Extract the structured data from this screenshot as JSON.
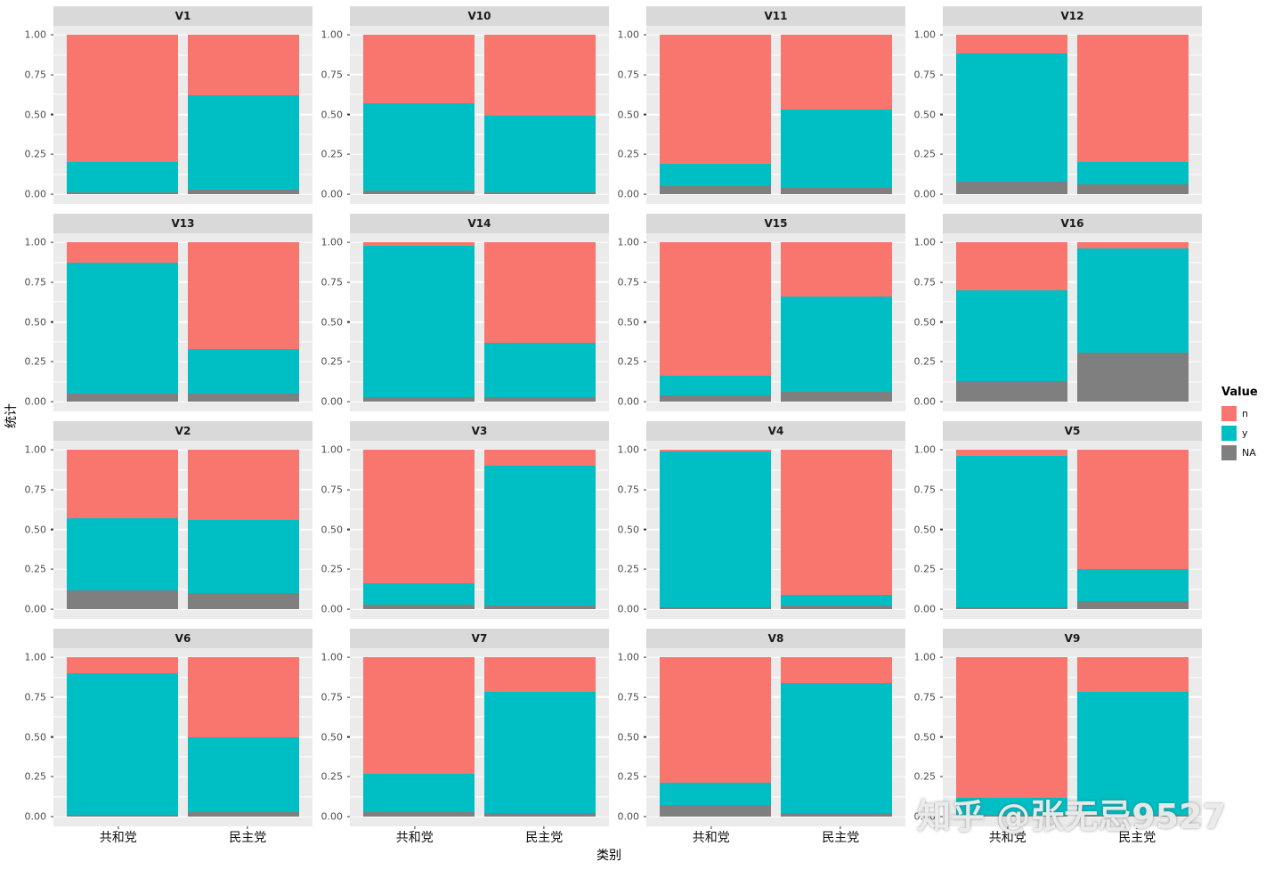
{
  "watermark": {
    "text": "知乎 @张无忌9527"
  },
  "chart_data": {
    "type": "bar",
    "stacked": true,
    "xlabel": "类别",
    "ylabel": "统计",
    "categories": [
      "共和党",
      "民主党"
    ],
    "ytick_labels": [
      "0.00",
      "0.25",
      "0.50",
      "0.75",
      "1.00"
    ],
    "ylim": [
      0,
      1
    ],
    "stack_order_bottom_to_top": [
      "NA",
      "y",
      "n"
    ],
    "colors": {
      "n": "#F8766D",
      "y": "#00BFC4",
      "NA": "#7F7F7F"
    },
    "legend": {
      "title": "Value",
      "position": "right",
      "entries": [
        {
          "label": "n",
          "color": "#F8766D"
        },
        {
          "label": "y",
          "color": "#00BFC4"
        },
        {
          "label": "NA",
          "color": "#7F7F7F"
        }
      ]
    },
    "facets": [
      {
        "title": "V1",
        "bars": [
          {
            "category": "共和党",
            "n": 0.8,
            "y": 0.19,
            "NA": 0.01
          },
          {
            "category": "民主党",
            "n": 0.38,
            "y": 0.59,
            "NA": 0.03
          }
        ]
      },
      {
        "title": "V10",
        "bars": [
          {
            "category": "共和党",
            "n": 0.43,
            "y": 0.55,
            "NA": 0.02
          },
          {
            "category": "民主党",
            "n": 0.51,
            "y": 0.48,
            "NA": 0.01
          }
        ]
      },
      {
        "title": "V11",
        "bars": [
          {
            "category": "共和党",
            "n": 0.81,
            "y": 0.14,
            "NA": 0.05
          },
          {
            "category": "民主党",
            "n": 0.47,
            "y": 0.49,
            "NA": 0.04
          }
        ]
      },
      {
        "title": "V12",
        "bars": [
          {
            "category": "共和党",
            "n": 0.12,
            "y": 0.8,
            "NA": 0.08
          },
          {
            "category": "民主党",
            "n": 0.8,
            "y": 0.14,
            "NA": 0.06
          }
        ]
      },
      {
        "title": "V13",
        "bars": [
          {
            "category": "共和党",
            "n": 0.13,
            "y": 0.82,
            "NA": 0.05
          },
          {
            "category": "民主党",
            "n": 0.67,
            "y": 0.28,
            "NA": 0.05
          }
        ]
      },
      {
        "title": "V14",
        "bars": [
          {
            "category": "共和党",
            "n": 0.02,
            "y": 0.95,
            "NA": 0.03
          },
          {
            "category": "民主党",
            "n": 0.63,
            "y": 0.34,
            "NA": 0.03
          }
        ]
      },
      {
        "title": "V15",
        "bars": [
          {
            "category": "共和党",
            "n": 0.84,
            "y": 0.12,
            "NA": 0.04
          },
          {
            "category": "民主党",
            "n": 0.34,
            "y": 0.6,
            "NA": 0.06
          }
        ]
      },
      {
        "title": "V16",
        "bars": [
          {
            "category": "共和党",
            "n": 0.3,
            "y": 0.57,
            "NA": 0.13
          },
          {
            "category": "民主党",
            "n": 0.04,
            "y": 0.65,
            "NA": 0.31
          }
        ]
      },
      {
        "title": "V2",
        "bars": [
          {
            "category": "共和党",
            "n": 0.43,
            "y": 0.45,
            "NA": 0.12
          },
          {
            "category": "民主党",
            "n": 0.44,
            "y": 0.46,
            "NA": 0.1
          }
        ]
      },
      {
        "title": "V3",
        "bars": [
          {
            "category": "共和党",
            "n": 0.84,
            "y": 0.13,
            "NA": 0.03
          },
          {
            "category": "民主党",
            "n": 0.1,
            "y": 0.88,
            "NA": 0.02
          }
        ]
      },
      {
        "title": "V4",
        "bars": [
          {
            "category": "共和党",
            "n": 0.01,
            "y": 0.98,
            "NA": 0.01
          },
          {
            "category": "民主党",
            "n": 0.91,
            "y": 0.07,
            "NA": 0.02
          }
        ]
      },
      {
        "title": "V5",
        "bars": [
          {
            "category": "共和党",
            "n": 0.04,
            "y": 0.95,
            "NA": 0.01
          },
          {
            "category": "民主党",
            "n": 0.75,
            "y": 0.2,
            "NA": 0.05
          }
        ]
      },
      {
        "title": "V6",
        "bars": [
          {
            "category": "共和党",
            "n": 0.1,
            "y": 0.89,
            "NA": 0.01
          },
          {
            "category": "民主党",
            "n": 0.5,
            "y": 0.47,
            "NA": 0.03
          }
        ]
      },
      {
        "title": "V7",
        "bars": [
          {
            "category": "共和党",
            "n": 0.73,
            "y": 0.24,
            "NA": 0.03
          },
          {
            "category": "民主党",
            "n": 0.22,
            "y": 0.76,
            "NA": 0.02
          }
        ]
      },
      {
        "title": "V8",
        "bars": [
          {
            "category": "共和党",
            "n": 0.79,
            "y": 0.14,
            "NA": 0.07
          },
          {
            "category": "民主党",
            "n": 0.16,
            "y": 0.82,
            "NA": 0.02
          }
        ]
      },
      {
        "title": "V9",
        "bars": [
          {
            "category": "共和党",
            "n": 0.88,
            "y": 0.11,
            "NA": 0.01
          },
          {
            "category": "民主党",
            "n": 0.22,
            "y": 0.77,
            "NA": 0.01
          }
        ]
      }
    ]
  }
}
